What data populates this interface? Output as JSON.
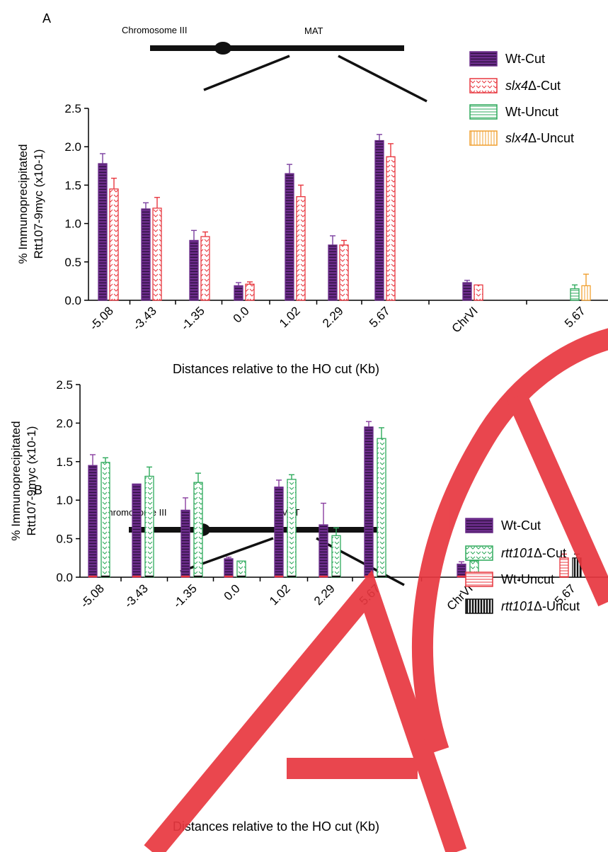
{
  "figure": {
    "watermark": {
      "text": "RETRACTED",
      "color": "#e8373f"
    }
  },
  "chart_data": [
    {
      "type": "bar",
      "panel_label": "A",
      "schematic": {
        "chromosome_label": "Chromosome III",
        "locus_label": "MAT"
      },
      "categories": [
        "-5.08",
        "-3.43",
        "-1.35",
        "0.0",
        "1.02",
        "2.29",
        "5.67",
        "ChrVI",
        "5.67"
      ],
      "ylabel_line1": "% Immunoprecipitated",
      "ylabel_line2": "Rtt107-9myc (x10-1)",
      "xlabel": "Distances relative to the HO cut (Kb)",
      "ylim": [
        0,
        2.5
      ],
      "yticks": [
        "0.0",
        "0.5",
        "1.0",
        "1.5",
        "2.0",
        "2.5"
      ],
      "legend_position": "top-right",
      "series": [
        {
          "name_italic": "",
          "name": "Wt-Cut",
          "pattern": "hstripe-fill",
          "color": "#6b2c8a",
          "error_color": "#7b3fa0",
          "values": [
            1.78,
            1.19,
            0.78,
            0.19,
            1.65,
            0.72,
            2.08,
            0.23,
            null
          ],
          "errors": [
            0.13,
            0.08,
            0.13,
            0.04,
            0.12,
            0.12,
            0.08,
            0.03,
            null
          ]
        },
        {
          "name_italic": "slx4",
          "name": "Δ-Cut",
          "pattern": "chevron",
          "color": "#e8373f",
          "error_color": "#e8373f",
          "values": [
            1.45,
            1.2,
            0.83,
            0.21,
            1.35,
            0.72,
            1.87,
            0.2,
            null
          ],
          "errors": [
            0.14,
            0.14,
            0.06,
            0.03,
            0.15,
            0.06,
            0.17,
            0.0,
            null
          ]
        },
        {
          "name_italic": "",
          "name": "Wt-Uncut",
          "pattern": "hstripe",
          "color": "#2eaa5c",
          "error_color": "#2eaa5c",
          "values": [
            null,
            null,
            null,
            null,
            null,
            null,
            null,
            null,
            0.15
          ],
          "errors": [
            null,
            null,
            null,
            null,
            null,
            null,
            null,
            null,
            0.05
          ]
        },
        {
          "name_italic": "slx4",
          "name": "Δ-Uncut",
          "pattern": "vstripe",
          "color": "#f0a030",
          "error_color": "#f0a030",
          "values": [
            null,
            null,
            null,
            null,
            null,
            null,
            null,
            null,
            0.19
          ],
          "errors": [
            null,
            null,
            null,
            null,
            null,
            null,
            null,
            null,
            0.15
          ]
        }
      ]
    },
    {
      "type": "bar",
      "panel_label": "B",
      "schematic": {
        "chromosome_label": "Chromosome III",
        "locus_label": "MAT"
      },
      "categories": [
        "-5.08",
        "-3.43",
        "-1.35",
        "0.0",
        "1.02",
        "2.29",
        "5.67",
        "ChrVI",
        "5.67"
      ],
      "ylabel_line1": "% Immunoprecipitated",
      "ylabel_line2": "Rtt107-9myc (x10-1)",
      "xlabel": "Distances relative to the HO cut (Kb)",
      "ylim": [
        0,
        2.5
      ],
      "yticks": [
        "0.0",
        "0.5",
        "1.0",
        "1.5",
        "2.0",
        "2.5"
      ],
      "legend_position": "top-right",
      "series": [
        {
          "name_italic": "",
          "name": "Wt-Cut",
          "pattern": "hstripe-fill",
          "color": "#6b2c8a",
          "error_color": "#8a3fa0",
          "values": [
            1.45,
            1.21,
            0.87,
            0.24,
            1.17,
            0.68,
            1.95,
            0.17,
            null
          ],
          "errors": [
            0.14,
            0.0,
            0.16,
            0.02,
            0.09,
            0.28,
            0.07,
            0.03,
            null
          ]
        },
        {
          "name_italic": "rtt101",
          "name": "Δ-Cut",
          "pattern": "chevron",
          "color": "#2eaa5c",
          "error_color": "#2eaa5c",
          "values": [
            1.49,
            1.31,
            1.23,
            0.21,
            1.27,
            0.54,
            1.8,
            0.21,
            null
          ],
          "errors": [
            0.06,
            0.12,
            0.12,
            0.0,
            0.06,
            0.1,
            0.14,
            0.04,
            null
          ]
        },
        {
          "name_italic": "",
          "name": "Wt-Uncut",
          "pattern": "hstripe",
          "color": "#e8373f",
          "error_color": "#e8373f",
          "values": [
            0.0,
            0.0,
            0.0,
            0.0,
            0.0,
            0.0,
            0.0,
            0.0,
            0.25
          ],
          "errors": [
            null,
            null,
            null,
            null,
            null,
            null,
            null,
            null,
            0.05
          ]
        },
        {
          "name_italic": "rtt101",
          "name": "Δ-Uncut",
          "pattern": "vstripe-dark",
          "color": "#111111",
          "error_color": "#111111",
          "values": [
            0.0,
            0.0,
            0.0,
            0.0,
            0.0,
            0.0,
            0.0,
            0.0,
            0.25
          ],
          "errors": [
            null,
            null,
            null,
            null,
            null,
            null,
            null,
            null,
            0.05
          ]
        }
      ]
    }
  ]
}
